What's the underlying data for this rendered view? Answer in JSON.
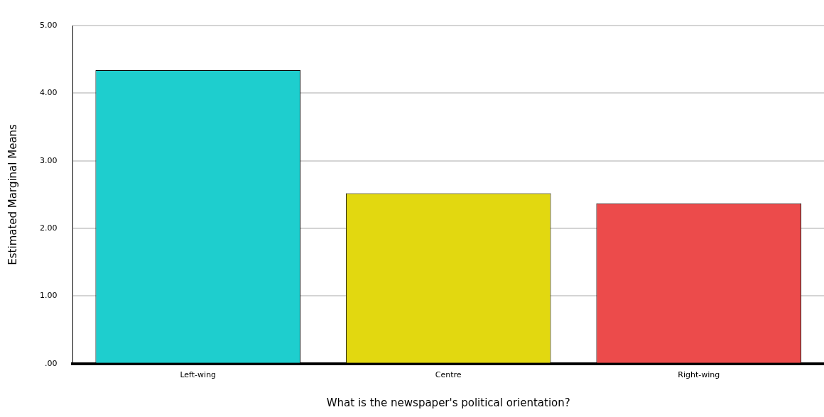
{
  "chart_data": {
    "type": "bar",
    "xlabel": "What is the newspaper's political orientation?",
    "ylabel": "Estimated Marginal Means",
    "categories": [
      "Left-wing",
      "Centre",
      "Right-wing"
    ],
    "values": [
      4.34,
      2.52,
      2.37
    ],
    "colors": [
      "#1ecece",
      "#e2d810",
      "#ec4b4b"
    ],
    "ylim": [
      0,
      5
    ],
    "yticks": [
      {
        "value": 0,
        "label": ".00"
      },
      {
        "value": 1,
        "label": "1.00"
      },
      {
        "value": 2,
        "label": "2.00"
      },
      {
        "value": 3,
        "label": "3.00"
      },
      {
        "value": 4,
        "label": "4.00"
      },
      {
        "value": 5,
        "label": "5.00"
      }
    ],
    "grid": "y"
  }
}
